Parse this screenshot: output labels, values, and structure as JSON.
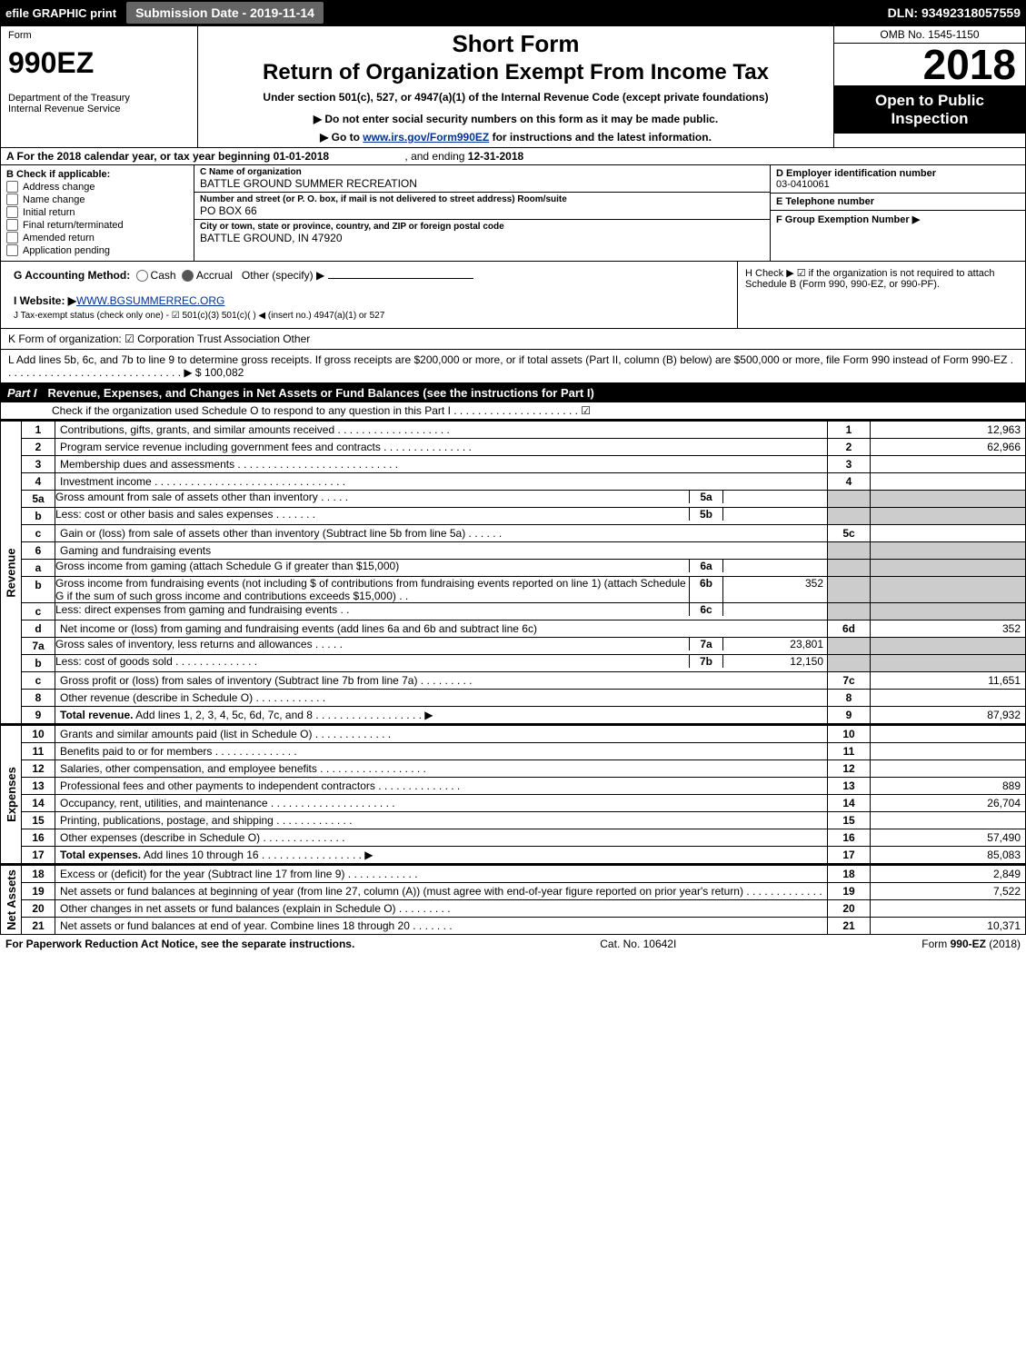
{
  "top": {
    "efile": "efile GRAPHIC print",
    "submit": "Submission Date - 2019-11-14",
    "dln": "DLN: 93492318057559"
  },
  "head": {
    "form_label": "Form",
    "form_no": "990EZ",
    "dept": "Department of the Treasury\nInternal Revenue Service",
    "short": "Short Form",
    "ret": "Return of Organization Exempt From Income Tax",
    "under": "Under section 501(c), 527, or 4947(a)(1) of the Internal Revenue Code (except private foundations)",
    "b1": "▶ Do not enter social security numbers on this form as it may be made public.",
    "b2_pre": "▶ Go to ",
    "b2_link": "www.irs.gov/Form990EZ",
    "b2_post": " for instructions and the latest information.",
    "omb": "OMB No. 1545-1150",
    "year": "2018",
    "open": "Open to Public Inspection"
  },
  "line_a": {
    "text_pre": "A  For the 2018 calendar year, or tax year beginning ",
    "begin": "01-01-2018",
    "mid": " , and ending ",
    "end": "12-31-2018"
  },
  "sec_b": {
    "title": "B  Check if applicable:",
    "items": [
      "Address change",
      "Name change",
      "Initial return",
      "Final return/terminated",
      "Amended return",
      "Application pending"
    ]
  },
  "sec_c": {
    "c_lbl": "C Name of organization",
    "c_val": "BATTLE GROUND SUMMER RECREATION",
    "addr_lbl": "Number and street (or P. O. box, if mail is not delivered to street address)       Room/suite",
    "addr_val": "PO BOX 66",
    "city_lbl": "City or town, state or province, country, and ZIP or foreign postal code",
    "city_val": "BATTLE GROUND, IN  47920"
  },
  "sec_right": {
    "d_lbl": "D Employer identification number",
    "d_val": "03-0410061",
    "e_lbl": "E Telephone number",
    "e_val": "",
    "f_lbl": "F Group Exemption Number  ▶",
    "f_val": ""
  },
  "gh": {
    "g_lbl": "G Accounting Method:",
    "g_opts": "   Cash     Accrual   Other (specify) ▶",
    "i_lbl": "I Website: ▶",
    "i_val": "WWW.BGSUMMERREC.ORG",
    "j": "J Tax-exempt status (check only one) -  ☑ 501(c)(3)   501(c)(  ) ◀ (insert no.)   4947(a)(1) or   527",
    "k": "K Form of organization:   ☑ Corporation    Trust    Association    Other",
    "h_text": "H  Check ▶  ☑  if the organization is not required to attach Schedule B (Form 990, 990-EZ, or 990-PF)."
  },
  "line_l": {
    "text": "L Add lines 5b, 6c, and 7b to line 9 to determine gross receipts. If gross receipts are $200,000 or more, or if total assets (Part II, column (B) below) are $500,000 or more, file Form 990 instead of Form 990-EZ  .  .  .  .  .  .  .  .  .  .  .  .  .  .  .  .  .  .  .  .  .  .  .  .  .  .  .  .  .  .  ▶ $ 100,082"
  },
  "part1": {
    "label": "Part I",
    "title": "Revenue, Expenses, and Changes in Net Assets or Fund Balances (see the instructions for Part I)",
    "sub": "Check if the organization used Schedule O to respond to any question in this Part I .  .  .  .  .  .  .  .  .  .  .  .  .  .  .  .  .  .  .  .  .  ☑"
  },
  "sections": [
    {
      "side": "Revenue",
      "rows": [
        {
          "n": "1",
          "d": "Contributions, gifts, grants, and similar amounts received  .  .  .  .  .  .  .  .  .  .  .  .  .  .  .  .  .  .  .",
          "rn": "1",
          "amt": "12,963"
        },
        {
          "n": "2",
          "d": "Program service revenue including government fees and contracts  .  .  .  .  .  .  .  .  .  .  .  .  .  .  .",
          "rn": "2",
          "amt": "62,966"
        },
        {
          "n": "3",
          "d": "Membership dues and assessments  .  .  .  .  .  .  .  .  .  .  .  .  .  .  .  .  .  .  .  .  .  .  .  .  .  .  .",
          "rn": "3",
          "amt": ""
        },
        {
          "n": "4",
          "d": "Investment income  .  .  .  .  .  .  .  .  .  .  .  .  .  .  .  .  .  .  .  .  .  .  .  .  .  .  .  .  .  .  .  .",
          "rn": "4",
          "amt": ""
        },
        {
          "n": "5a",
          "d": "Gross amount from sale of assets other than inventory  .  .  .  .  .",
          "sub": {
            "sn": "5a",
            "sv": ""
          },
          "grey": true
        },
        {
          "n": "b",
          "d": "Less: cost or other basis and sales expenses  .  .  .  .  .  .  .",
          "sub": {
            "sn": "5b",
            "sv": ""
          },
          "grey": true
        },
        {
          "n": "c",
          "d": "Gain or (loss) from sale of assets other than inventory (Subtract line 5b from line 5a)  .  .  .  .  .  .",
          "rn": "5c",
          "amt": ""
        },
        {
          "n": "6",
          "d": "Gaming and fundraising events",
          "grey": true,
          "nornum": true
        },
        {
          "n": "a",
          "d": "Gross income from gaming (attach Schedule G if greater than $15,000)",
          "sub": {
            "sn": "6a",
            "sv": ""
          },
          "grey": true
        },
        {
          "n": "b",
          "d": "Gross income from fundraising events (not including $                 of contributions from fundraising events reported on line 1) (attach Schedule G if the sum of such gross income and contributions exceeds $15,000)    .   .",
          "sub": {
            "sn": "6b",
            "sv": "352"
          },
          "grey": true
        },
        {
          "n": "c",
          "d": "Less: direct expenses from gaming and fundraising events    .   .",
          "sub": {
            "sn": "6c",
            "sv": ""
          },
          "grey": true
        },
        {
          "n": "d",
          "d": "Net income or (loss) from gaming and fundraising events (add lines 6a and 6b and subtract line 6c)",
          "rn": "6d",
          "amt": "352"
        },
        {
          "n": "7a",
          "d": "Gross sales of inventory, less returns and allowances  .  .  .  .  .",
          "sub": {
            "sn": "7a",
            "sv": "23,801"
          },
          "grey": true
        },
        {
          "n": "b",
          "d": "Less: cost of goods sold     .  .  .  .  .  .  .  .  .  .  .  .  .  .",
          "sub": {
            "sn": "7b",
            "sv": "12,150"
          },
          "grey": true
        },
        {
          "n": "c",
          "d": "Gross profit or (loss) from sales of inventory (Subtract line 7b from line 7a)  .  .  .  .  .  .  .  .  .",
          "rn": "7c",
          "amt": "11,651"
        },
        {
          "n": "8",
          "d": "Other revenue (describe in Schedule O)      .  .  .  .  .  .  .  .  .  .  .  .",
          "rn": "8",
          "amt": ""
        },
        {
          "n": "9",
          "d": "Total revenue. Add lines 1, 2, 3, 4, 5c, 6d, 7c, and 8  .  .  .  .  .  .  .  .  .  .  .  .  .  .  .  .  .  .  ▶",
          "rn": "9",
          "amt": "87,932",
          "bold": true
        }
      ]
    },
    {
      "side": "Expenses",
      "rows": [
        {
          "n": "10",
          "d": "Grants and similar amounts paid (list in Schedule O)   .  .  .  .  .  .  .  .  .  .  .  .  .",
          "rn": "10",
          "amt": ""
        },
        {
          "n": "11",
          "d": "Benefits paid to or for members    .  .  .  .  .  .  .  .  .  .  .  .  .  .",
          "rn": "11",
          "amt": ""
        },
        {
          "n": "12",
          "d": "Salaries, other compensation, and employee benefits  .  .  .  .  .  .  .  .  .  .  .  .  .  .  .  .  .  .",
          "rn": "12",
          "amt": ""
        },
        {
          "n": "13",
          "d": "Professional fees and other payments to independent contractors  .  .  .  .  .  .  .  .  .  .  .  .  .  .",
          "rn": "13",
          "amt": "889"
        },
        {
          "n": "14",
          "d": "Occupancy, rent, utilities, and maintenance  .  .  .  .  .  .  .  .  .  .  .  .  .  .  .  .  .  .  .  .  .",
          "rn": "14",
          "amt": "26,704"
        },
        {
          "n": "15",
          "d": "Printing, publications, postage, and shipping    .  .  .  .  .  .  .  .  .  .  .  .  .",
          "rn": "15",
          "amt": ""
        },
        {
          "n": "16",
          "d": "Other expenses (describe in Schedule O)    .  .  .  .  .  .  .  .  .  .  .  .  .  .",
          "rn": "16",
          "amt": "57,490"
        },
        {
          "n": "17",
          "d": "Total expenses. Add lines 10 through 16   .  .  .  .  .  .  .  .  .  .  .  .  .  .  .  .  .  ▶",
          "rn": "17",
          "amt": "85,083",
          "bold": true
        }
      ]
    },
    {
      "side": "Net Assets",
      "rows": [
        {
          "n": "18",
          "d": "Excess or (deficit) for the year (Subtract line 17 from line 9)   .  .  .  .  .  .  .  .  .  .  .  .",
          "rn": "18",
          "amt": "2,849"
        },
        {
          "n": "19",
          "d": "Net assets or fund balances at beginning of year (from line 27, column (A)) (must agree with end-of-year figure reported on prior year's return)   .  .  .  .  .  .  .  .  .  .  .  .  .",
          "rn": "19",
          "amt": "7,522"
        },
        {
          "n": "20",
          "d": "Other changes in net assets or fund balances (explain in Schedule O)   .  .  .  .  .  .  .  .  .",
          "rn": "20",
          "amt": ""
        },
        {
          "n": "21",
          "d": "Net assets or fund balances at end of year. Combine lines 18 through 20   .  .  .  .  .  .  .",
          "rn": "21",
          "amt": "10,371"
        }
      ]
    }
  ],
  "footer": {
    "left": "For Paperwork Reduction Act Notice, see the separate instructions.",
    "mid": "Cat. No. 10642I",
    "right": "Form 990-EZ (2018)"
  }
}
